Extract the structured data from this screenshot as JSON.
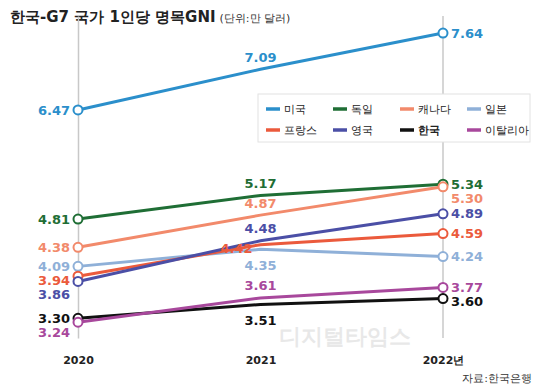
{
  "chart_data": {
    "type": "line",
    "title": "한국-G7 국가 1인당 명목GNI",
    "subtitle": "(단위:만 달러)",
    "source": "자료:한국은행",
    "watermark": "디지털타임스",
    "categories": [
      "2020",
      "2021",
      "2022년"
    ],
    "ylim": [
      3.0,
      7.9
    ],
    "tick_labels": "x",
    "grid": false,
    "legend": "top-right",
    "data_labels": true,
    "marker": "circle",
    "series": [
      {
        "name": "미국",
        "color": "#2b8fcb",
        "values": [
          6.47,
          7.09,
          7.64
        ],
        "value_labels": [
          "6.47",
          "7.09",
          "7.64"
        ]
      },
      {
        "name": "독일",
        "color": "#1f6e35",
        "values": [
          4.81,
          5.17,
          5.34
        ],
        "value_labels": [
          "4.81",
          "5.17",
          "5.34"
        ]
      },
      {
        "name": "캐나다",
        "color": "#f28a6b",
        "values": [
          4.38,
          4.87,
          5.3
        ],
        "value_labels": [
          "4.38",
          "4.87",
          "5.30"
        ]
      },
      {
        "name": "일본",
        "color": "#8fb0d8",
        "values": [
          4.09,
          4.35,
          4.24
        ],
        "value_labels": [
          "4.09",
          "4.35",
          "4.24"
        ]
      },
      {
        "name": "프랑스",
        "color": "#eb5a3c",
        "values": [
          3.94,
          4.42,
          4.59
        ],
        "value_labels": [
          "3.94",
          "4.42",
          "4.59"
        ]
      },
      {
        "name": "영국",
        "color": "#4b4fa6",
        "values": [
          3.86,
          4.48,
          4.89
        ],
        "value_labels": [
          "3.86",
          "4.48",
          "4.89"
        ]
      },
      {
        "name": "한국",
        "color": "#111111",
        "values": [
          3.3,
          3.51,
          3.6
        ],
        "value_labels": [
          "3.30",
          "3.51",
          "3.60"
        ]
      },
      {
        "name": "이탈리아",
        "color": "#a8489c",
        "values": [
          3.24,
          3.61,
          3.77
        ],
        "value_labels": [
          "3.24",
          "3.61",
          "3.77"
        ]
      }
    ]
  }
}
